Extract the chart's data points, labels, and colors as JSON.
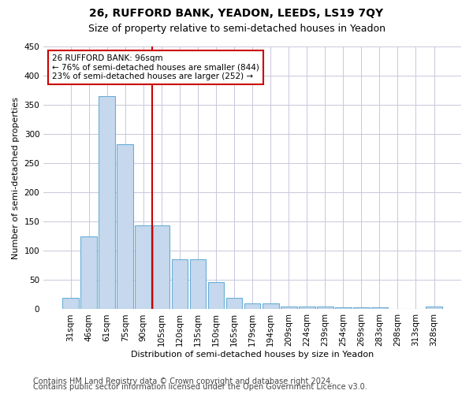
{
  "title": "26, RUFFORD BANK, YEADON, LEEDS, LS19 7QY",
  "subtitle": "Size of property relative to semi-detached houses in Yeadon",
  "xlabel": "Distribution of semi-detached houses by size in Yeadon",
  "ylabel": "Number of semi-detached properties",
  "categories": [
    "31sqm",
    "46sqm",
    "61sqm",
    "75sqm",
    "90sqm",
    "105sqm",
    "120sqm",
    "135sqm",
    "150sqm",
    "165sqm",
    "179sqm",
    "194sqm",
    "209sqm",
    "224sqm",
    "239sqm",
    "254sqm",
    "269sqm",
    "283sqm",
    "298sqm",
    "313sqm",
    "328sqm"
  ],
  "values": [
    20,
    125,
    365,
    283,
    143,
    143,
    85,
    85,
    47,
    20,
    10,
    10,
    4,
    5,
    4,
    3,
    3,
    3,
    0,
    0,
    4
  ],
  "bar_color": "#c5d8ed",
  "bar_edge_color": "#6aaed6",
  "property_label": "26 RUFFORD BANK: 96sqm",
  "pct_smaller": 76,
  "n_smaller": 844,
  "pct_larger": 23,
  "n_larger": 252,
  "vline_x": 4.5,
  "vline_color": "#cc0000",
  "annotation_box_color": "#cc0000",
  "ylim": [
    0,
    450
  ],
  "yticks": [
    0,
    50,
    100,
    150,
    200,
    250,
    300,
    350,
    400,
    450
  ],
  "footer1": "Contains HM Land Registry data © Crown copyright and database right 2024.",
  "footer2": "Contains public sector information licensed under the Open Government Licence v3.0.",
  "title_fontsize": 10,
  "subtitle_fontsize": 9,
  "axis_label_fontsize": 8,
  "tick_fontsize": 7.5,
  "annotation_fontsize": 7.5,
  "footer_fontsize": 7,
  "background_color": "#ffffff",
  "grid_color": "#c8c8dc"
}
